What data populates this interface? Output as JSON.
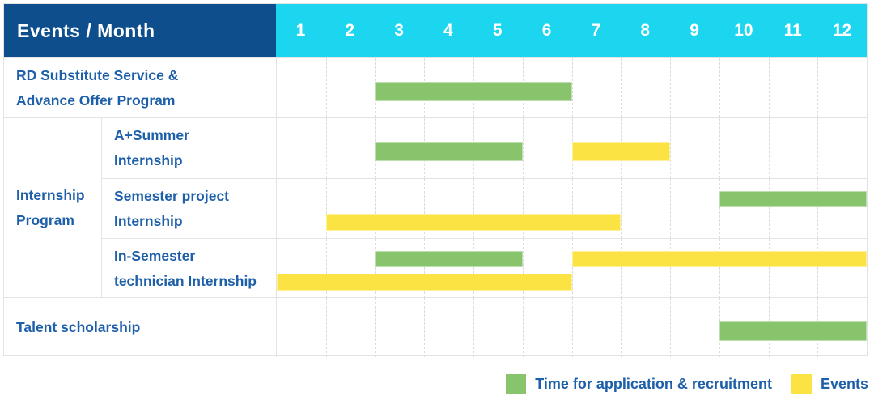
{
  "colors": {
    "header_bg": "#0F4E8C",
    "months_bg": "#1CD6EF",
    "text_blue": "#1D5FA9",
    "green": "#88C46C",
    "yellow": "#FCE344",
    "grid_line": "#E3E3E3"
  },
  "header": {
    "title": "Events / Month",
    "months": [
      "1",
      "2",
      "3",
      "4",
      "5",
      "6",
      "7",
      "8",
      "9",
      "10",
      "11",
      "12"
    ]
  },
  "rows": {
    "rd": {
      "lines": [
        "RD Substitute Service &",
        "Advance Offer Program"
      ]
    },
    "group_internship": {
      "lines": [
        "Internship",
        "Program"
      ]
    },
    "a_summer": {
      "lines": [
        "A+Summer",
        "Internship"
      ]
    },
    "semester_project": {
      "lines": [
        "Semester project",
        "Internship"
      ]
    },
    "in_semester": {
      "lines": [
        "In-Semester",
        "technician Internship"
      ]
    },
    "talent": {
      "lines": [
        "Talent scholarship"
      ]
    }
  },
  "legend": {
    "application_label": "Time for application & recruitment",
    "events_label": "Events"
  },
  "chart_data": {
    "type": "bar",
    "subtype": "gantt",
    "title": "Events / Month",
    "x_categories": [
      "1",
      "2",
      "3",
      "4",
      "5",
      "6",
      "7",
      "8",
      "9",
      "10",
      "11",
      "12"
    ],
    "x_range": [
      1,
      12
    ],
    "grid": "vertical-dashed",
    "legend_position": "bottom-right",
    "legend": [
      {
        "name": "Time for application & recruitment",
        "color": "#88C46C"
      },
      {
        "name": "Events",
        "color": "#FCE344"
      }
    ],
    "rows": [
      {
        "id": "rd",
        "group": "",
        "label": "RD Substitute Service & Advance Offer Program",
        "bars": [
          {
            "series": "application",
            "color": "green",
            "start_month": 3,
            "end_month": 6,
            "lane": "center"
          }
        ]
      },
      {
        "id": "a_summer",
        "group": "Internship Program",
        "label": "A+Summer Internship",
        "bars": [
          {
            "series": "application",
            "color": "green",
            "start_month": 3,
            "end_month": 5,
            "lane": "center"
          },
          {
            "series": "events",
            "color": "yellow",
            "start_month": 7,
            "end_month": 8,
            "lane": "center"
          }
        ]
      },
      {
        "id": "semester_project",
        "group": "Internship Program",
        "label": "Semester project Internship",
        "bars": [
          {
            "series": "application",
            "color": "green",
            "start_month": 10,
            "end_month": 12,
            "lane": "upper"
          },
          {
            "series": "events",
            "color": "yellow",
            "start_month": 2,
            "end_month": 7,
            "lane": "lower"
          }
        ]
      },
      {
        "id": "in_semester",
        "group": "Internship Program",
        "label": "In-Semester technician Internship",
        "bars": [
          {
            "series": "application",
            "color": "green",
            "start_month": 3,
            "end_month": 5,
            "lane": "upper"
          },
          {
            "series": "events",
            "color": "yellow",
            "start_month": 7,
            "end_month": 12,
            "lane": "upper"
          },
          {
            "series": "events",
            "color": "yellow",
            "start_month": 1,
            "end_month": 6,
            "lane": "lower"
          }
        ]
      },
      {
        "id": "talent",
        "group": "",
        "label": "Talent scholarship",
        "bars": [
          {
            "series": "application",
            "color": "green",
            "start_month": 10,
            "end_month": 12,
            "lane": "center"
          }
        ]
      }
    ]
  }
}
